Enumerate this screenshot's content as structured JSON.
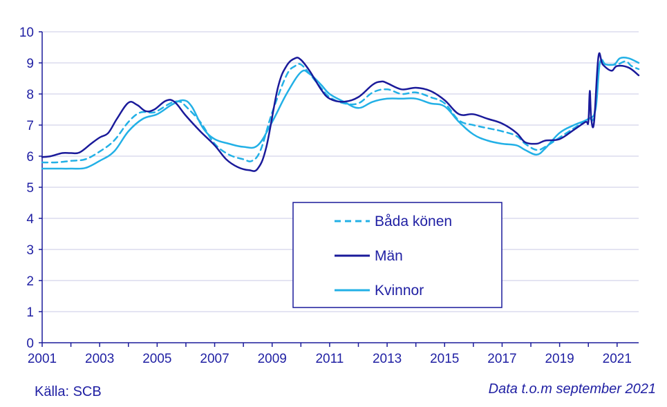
{
  "chart_data": {
    "type": "line",
    "title": "",
    "xlabel": "",
    "ylabel": "",
    "xlim": [
      2001.0,
      2021.75
    ],
    "ylim": [
      0,
      10
    ],
    "grid": true,
    "x_ticks": [
      "2001",
      "2003",
      "2005",
      "2007",
      "2009",
      "2011",
      "2013",
      "2015",
      "2017",
      "2019",
      "2021"
    ],
    "y_ticks": [
      "0",
      "1",
      "2",
      "3",
      "4",
      "5",
      "6",
      "7",
      "8",
      "9",
      "10"
    ],
    "legend_position": "center-right",
    "series": [
      {
        "name": "Båda könen",
        "color": "#22b0e6",
        "style": "dashed",
        "points": [
          [
            2001.0,
            5.8
          ],
          [
            2001.5,
            5.8
          ],
          [
            2002.0,
            5.85
          ],
          [
            2002.5,
            5.9
          ],
          [
            2003.0,
            6.15
          ],
          [
            2003.5,
            6.5
          ],
          [
            2004.0,
            7.1
          ],
          [
            2004.4,
            7.4
          ],
          [
            2004.8,
            7.4
          ],
          [
            2005.0,
            7.45
          ],
          [
            2005.5,
            7.72
          ],
          [
            2005.8,
            7.75
          ],
          [
            2006.0,
            7.6
          ],
          [
            2006.5,
            7.1
          ],
          [
            2007.0,
            6.4
          ],
          [
            2007.5,
            6.05
          ],
          [
            2008.0,
            5.9
          ],
          [
            2008.3,
            5.85
          ],
          [
            2008.6,
            6.2
          ],
          [
            2009.0,
            7.4
          ],
          [
            2009.5,
            8.6
          ],
          [
            2009.8,
            8.9
          ],
          [
            2010.0,
            8.95
          ],
          [
            2010.3,
            8.65
          ],
          [
            2010.7,
            8.2
          ],
          [
            2011.0,
            7.9
          ],
          [
            2011.5,
            7.7
          ],
          [
            2012.0,
            7.7
          ],
          [
            2012.5,
            8.05
          ],
          [
            2013.0,
            8.15
          ],
          [
            2013.5,
            8.0
          ],
          [
            2014.0,
            8.05
          ],
          [
            2014.5,
            7.9
          ],
          [
            2015.0,
            7.7
          ],
          [
            2015.5,
            7.15
          ],
          [
            2016.0,
            7.0
          ],
          [
            2016.5,
            6.9
          ],
          [
            2017.0,
            6.8
          ],
          [
            2017.5,
            6.65
          ],
          [
            2017.8,
            6.4
          ],
          [
            2018.2,
            6.2
          ],
          [
            2018.5,
            6.3
          ],
          [
            2019.0,
            6.6
          ],
          [
            2019.5,
            6.9
          ],
          [
            2020.0,
            7.2
          ],
          [
            2020.2,
            7.3
          ],
          [
            2020.4,
            9.0
          ],
          [
            2020.6,
            8.95
          ],
          [
            2021.0,
            8.95
          ],
          [
            2021.3,
            9.05
          ],
          [
            2021.5,
            8.9
          ],
          [
            2021.75,
            8.8
          ]
        ]
      },
      {
        "name": "Män",
        "color": "#1a1a9a",
        "style": "solid",
        "points": [
          [
            2001.0,
            5.97
          ],
          [
            2001.3,
            6.0
          ],
          [
            2001.7,
            6.1
          ],
          [
            2002.0,
            6.1
          ],
          [
            2002.3,
            6.12
          ],
          [
            2002.7,
            6.4
          ],
          [
            2003.0,
            6.6
          ],
          [
            2003.3,
            6.75
          ],
          [
            2003.6,
            7.2
          ],
          [
            2004.0,
            7.72
          ],
          [
            2004.3,
            7.65
          ],
          [
            2004.6,
            7.45
          ],
          [
            2004.9,
            7.5
          ],
          [
            2005.3,
            7.78
          ],
          [
            2005.6,
            7.75
          ],
          [
            2006.0,
            7.3
          ],
          [
            2006.5,
            6.8
          ],
          [
            2007.0,
            6.35
          ],
          [
            2007.4,
            5.9
          ],
          [
            2007.8,
            5.65
          ],
          [
            2008.2,
            5.55
          ],
          [
            2008.5,
            5.6
          ],
          [
            2008.8,
            6.3
          ],
          [
            2009.2,
            8.2
          ],
          [
            2009.5,
            8.9
          ],
          [
            2009.8,
            9.15
          ],
          [
            2010.0,
            9.1
          ],
          [
            2010.3,
            8.75
          ],
          [
            2010.7,
            8.15
          ],
          [
            2011.0,
            7.85
          ],
          [
            2011.5,
            7.75
          ],
          [
            2012.0,
            7.9
          ],
          [
            2012.5,
            8.3
          ],
          [
            2012.8,
            8.4
          ],
          [
            2013.0,
            8.35
          ],
          [
            2013.5,
            8.15
          ],
          [
            2014.0,
            8.2
          ],
          [
            2014.5,
            8.1
          ],
          [
            2015.0,
            7.8
          ],
          [
            2015.5,
            7.35
          ],
          [
            2016.0,
            7.35
          ],
          [
            2016.5,
            7.2
          ],
          [
            2017.0,
            7.05
          ],
          [
            2017.5,
            6.75
          ],
          [
            2017.8,
            6.45
          ],
          [
            2018.2,
            6.4
          ],
          [
            2018.5,
            6.5
          ],
          [
            2019.0,
            6.55
          ],
          [
            2019.5,
            6.85
          ],
          [
            2019.9,
            7.1
          ],
          [
            2020.0,
            7.1
          ],
          [
            2020.05,
            8.1
          ],
          [
            2020.1,
            7.2
          ],
          [
            2020.2,
            7.1
          ],
          [
            2020.35,
            9.2
          ],
          [
            2020.5,
            8.95
          ],
          [
            2020.8,
            8.75
          ],
          [
            2021.0,
            8.9
          ],
          [
            2021.4,
            8.85
          ],
          [
            2021.75,
            8.6
          ]
        ]
      },
      {
        "name": "Kvinnor",
        "color": "#22b0e6",
        "style": "solid",
        "points": [
          [
            2001.0,
            5.6
          ],
          [
            2001.5,
            5.6
          ],
          [
            2002.0,
            5.6
          ],
          [
            2002.5,
            5.62
          ],
          [
            2003.0,
            5.85
          ],
          [
            2003.5,
            6.15
          ],
          [
            2004.0,
            6.8
          ],
          [
            2004.5,
            7.2
          ],
          [
            2005.0,
            7.35
          ],
          [
            2005.5,
            7.65
          ],
          [
            2005.9,
            7.8
          ],
          [
            2006.2,
            7.6
          ],
          [
            2006.6,
            6.9
          ],
          [
            2007.0,
            6.55
          ],
          [
            2007.5,
            6.4
          ],
          [
            2008.0,
            6.3
          ],
          [
            2008.5,
            6.35
          ],
          [
            2009.0,
            7.1
          ],
          [
            2009.5,
            8.0
          ],
          [
            2010.0,
            8.7
          ],
          [
            2010.3,
            8.65
          ],
          [
            2010.7,
            8.3
          ],
          [
            2011.0,
            8.0
          ],
          [
            2011.5,
            7.75
          ],
          [
            2012.0,
            7.55
          ],
          [
            2012.5,
            7.75
          ],
          [
            2013.0,
            7.85
          ],
          [
            2013.5,
            7.85
          ],
          [
            2014.0,
            7.85
          ],
          [
            2014.5,
            7.7
          ],
          [
            2015.0,
            7.6
          ],
          [
            2015.5,
            7.1
          ],
          [
            2016.0,
            6.7
          ],
          [
            2016.5,
            6.5
          ],
          [
            2017.0,
            6.4
          ],
          [
            2017.5,
            6.35
          ],
          [
            2017.8,
            6.2
          ],
          [
            2018.2,
            6.05
          ],
          [
            2018.5,
            6.25
          ],
          [
            2019.0,
            6.75
          ],
          [
            2019.5,
            7.0
          ],
          [
            2020.0,
            7.2
          ],
          [
            2020.25,
            7.5
          ],
          [
            2020.4,
            9.0
          ],
          [
            2020.6,
            8.95
          ],
          [
            2020.9,
            8.95
          ],
          [
            2021.1,
            9.15
          ],
          [
            2021.4,
            9.15
          ],
          [
            2021.75,
            9.0
          ]
        ]
      }
    ]
  },
  "footer": {
    "source": "Källa: SCB",
    "note": "Data t.o.m september 2021"
  }
}
